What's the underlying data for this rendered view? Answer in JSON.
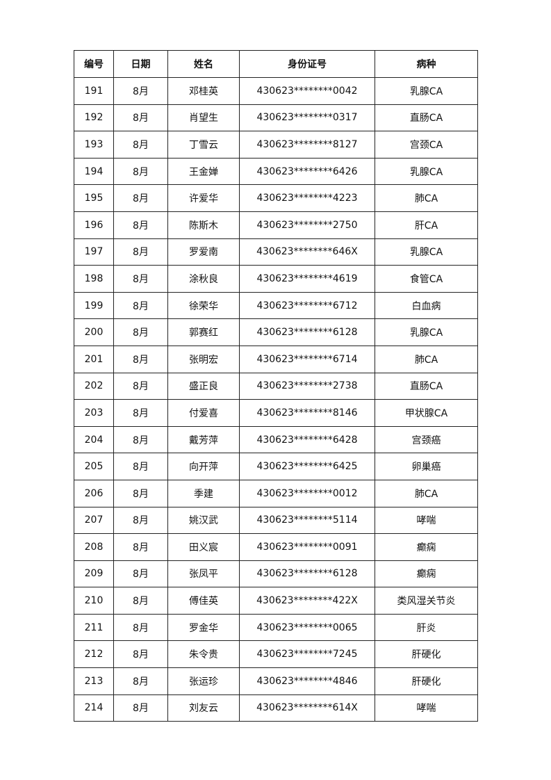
{
  "table": {
    "headers": [
      "编号",
      "日期",
      "姓名",
      "身份证号",
      "病种"
    ],
    "rows": [
      [
        "191",
        "8月",
        "邓桂英",
        "430623********0042",
        "乳腺CA"
      ],
      [
        "192",
        "8月",
        "肖望生",
        "430623********0317",
        "直肠CA"
      ],
      [
        "193",
        "8月",
        "丁雪云",
        "430623********8127",
        "宫颈CA"
      ],
      [
        "194",
        "8月",
        "王金婵",
        "430623********6426",
        "乳腺CA"
      ],
      [
        "195",
        "8月",
        "许爱华",
        "430623********4223",
        "肺CA"
      ],
      [
        "196",
        "8月",
        "陈斯木",
        "430623********2750",
        "肝CA"
      ],
      [
        "197",
        "8月",
        "罗爱南",
        "430623********646X",
        "乳腺CA"
      ],
      [
        "198",
        "8月",
        "涂秋良",
        "430623********4619",
        "食管CA"
      ],
      [
        "199",
        "8月",
        "徐荣华",
        "430623********6712",
        "白血病"
      ],
      [
        "200",
        "8月",
        "郭赛红",
        "430623********6128",
        "乳腺CA"
      ],
      [
        "201",
        "8月",
        "张明宏",
        "430623********6714",
        "肺CA"
      ],
      [
        "202",
        "8月",
        "盛正良",
        "430623********2738",
        "直肠CA"
      ],
      [
        "203",
        "8月",
        "付爱喜",
        "430623********8146",
        "甲状腺CA"
      ],
      [
        "204",
        "8月",
        "戴芳萍",
        "430623********6428",
        "宫颈癌"
      ],
      [
        "205",
        "8月",
        "向开萍",
        "430623********6425",
        "卵巢癌"
      ],
      [
        "206",
        "8月",
        "季建",
        "430623********0012",
        "肺CA"
      ],
      [
        "207",
        "8月",
        "姚汉武",
        "430623********5114",
        "哮喘"
      ],
      [
        "208",
        "8月",
        "田义宸",
        "430623********0091",
        "癫痫"
      ],
      [
        "209",
        "8月",
        "张凤平",
        "430623********6128",
        "癫痫"
      ],
      [
        "210",
        "8月",
        "傅佳英",
        "430623********422X",
        "类风湿关节炎"
      ],
      [
        "211",
        "8月",
        "罗金华",
        "430623********0065",
        "肝炎"
      ],
      [
        "212",
        "8月",
        "朱令贵",
        "430623********7245",
        "肝硬化"
      ],
      [
        "213",
        "8月",
        "张运珍",
        "430623********4846",
        "肝硬化"
      ],
      [
        "214",
        "8月",
        "刘友云",
        "430623********614X",
        "哮喘"
      ]
    ]
  }
}
